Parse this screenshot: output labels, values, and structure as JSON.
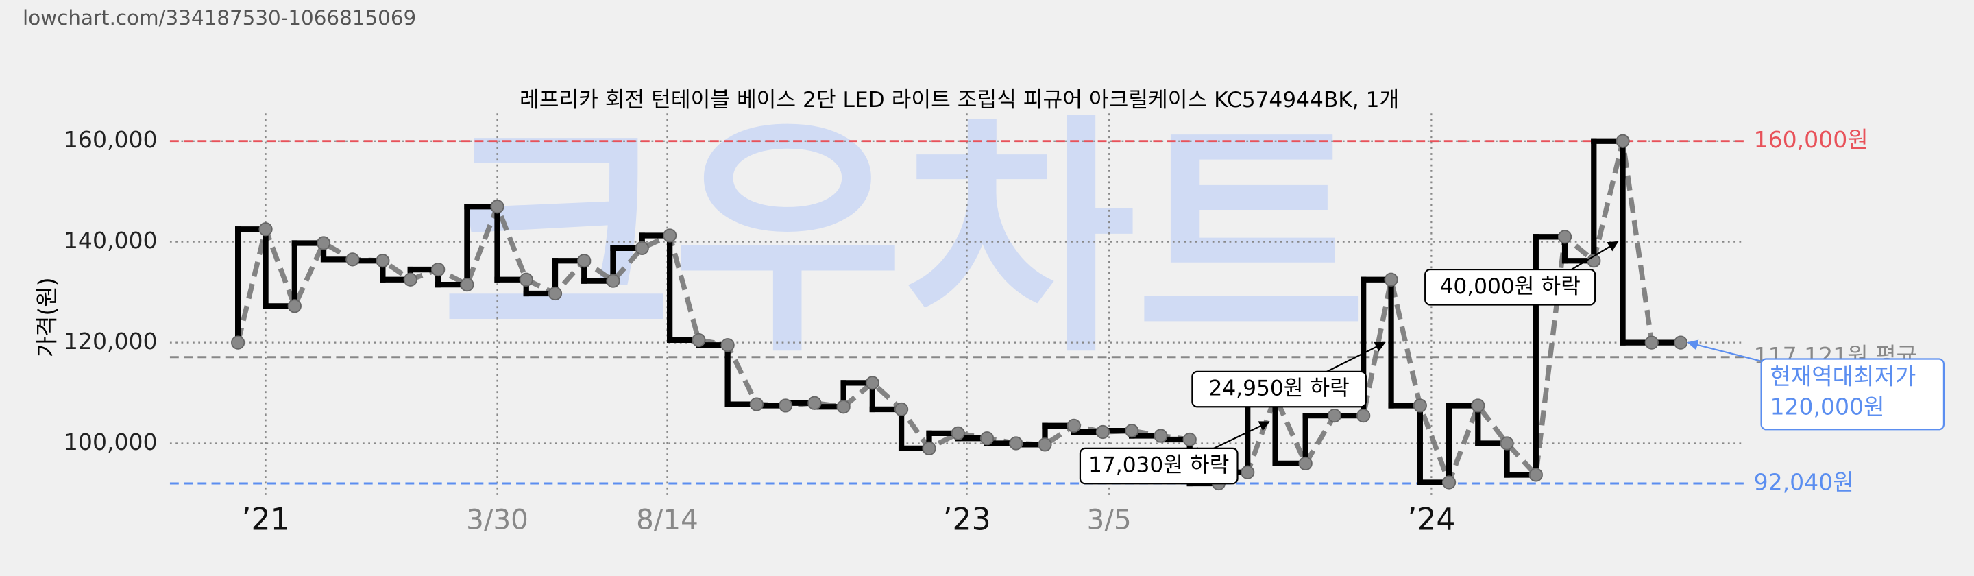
{
  "source": "lowchart.com/334187530-1066815069",
  "chart_data": {
    "type": "step-line",
    "title": "레프리카 회전 턴테이블 베이스 2단 LED 라이트 조립식 피규어 아크릴케이스 KC574944BK, 1개",
    "watermark": "크우차트",
    "y_label": "가격(원)",
    "x": [
      54,
      76,
      99,
      122,
      145,
      169,
      191,
      213,
      236,
      260,
      283,
      306,
      329,
      352,
      375,
      397,
      420,
      443,
      466,
      489,
      512,
      535,
      558,
      581,
      603,
      626,
      649,
      672,
      695,
      718,
      741,
      764,
      787,
      810,
      833,
      856,
      878,
      902,
      925,
      948,
      970,
      993,
      1016,
      1039,
      1062,
      1085,
      1108,
      1131,
      1154,
      1177,
      1200
    ],
    "series": [
      {
        "color": "#000000",
        "values": [
          120000,
          142500,
          127250,
          139750,
          136500,
          136250,
          132500,
          134500,
          131500,
          147000,
          132500,
          129750,
          136250,
          132250,
          138750,
          141250,
          120500,
          119500,
          107750,
          107500,
          108000,
          107250,
          112000,
          106750,
          99000,
          102000,
          101000,
          100000,
          99750,
          103500,
          102250,
          102500,
          101500,
          100750,
          92040,
          94250,
          109250,
          96000,
          105500,
          105500,
          132500,
          107500,
          92250,
          107500,
          100000,
          93750,
          141000,
          136250,
          160000,
          120000,
          120000
        ]
      }
    ],
    "xlim": [
      0,
      1250
    ],
    "xticks": [
      {
        "value": 76,
        "label": "’21"
      },
      {
        "value": 260,
        "label": "3/30"
      },
      {
        "value": 395,
        "label": "8/14"
      },
      {
        "value": 633,
        "label": "’23"
      },
      {
        "value": 746,
        "label": "3/5"
      },
      {
        "value": 1002,
        "label": "’24"
      }
    ],
    "ylim": [
      89250,
      165500
    ],
    "yticks": [
      {
        "value": 100000,
        "label": "100,000"
      },
      {
        "value": 120000,
        "label": "120,000"
      },
      {
        "value": 140000,
        "label": "140,000"
      },
      {
        "value": 160000,
        "label": "160,000"
      }
    ],
    "grid": true,
    "reference_lines": [
      {
        "value": 160000,
        "label": "160,000원",
        "color": "#e8525a"
      },
      {
        "value": 117121,
        "label": "117,121원 평균",
        "color": "#888888"
      },
      {
        "value": 92040,
        "label": "92,040원",
        "color": "#5b8ef0"
      }
    ],
    "annotations": [
      {
        "text": "17,030원 하락"
      },
      {
        "text": "24,950원 하락"
      },
      {
        "text": "40,000원 하락"
      }
    ],
    "current_note": {
      "title": "현재역대최저가",
      "value": 120000,
      "label": "120,000원",
      "color": "#5b8ef0"
    }
  }
}
